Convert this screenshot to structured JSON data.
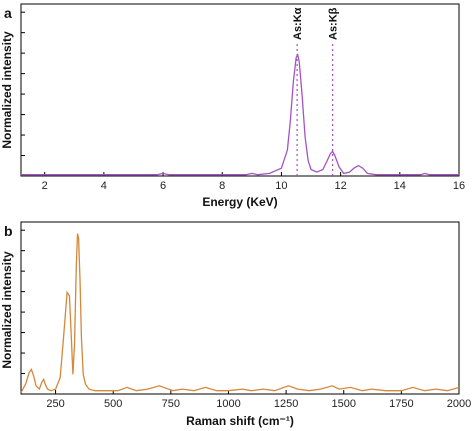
{
  "chart_data": [
    {
      "type": "line",
      "panel": "a",
      "xlabel": "Energy (KeV)",
      "ylabel": "Normalized intensity",
      "xlim": [
        1.2,
        16
      ],
      "ylim": [
        0,
        1.32
      ],
      "xticks": [
        2,
        4,
        6,
        8,
        10,
        12,
        14,
        16
      ],
      "show_y_tick_labels": false,
      "color": "#a452c4",
      "annotations": [
        {
          "text": "As:Kα",
          "x": 10.53
        },
        {
          "text": "As:Kβ",
          "x": 11.73
        }
      ],
      "series": [
        {
          "x": [
            1.2,
            2,
            3,
            4,
            5,
            5.8,
            6.0,
            6.2,
            7,
            8,
            8.8,
            9.0,
            9.2,
            9.6,
            10.0,
            10.2,
            10.3,
            10.4,
            10.5,
            10.55,
            10.6,
            10.7,
            10.8,
            10.9,
            11.0,
            11.2,
            11.4,
            11.55,
            11.65,
            11.73,
            11.8,
            11.95,
            12.1,
            12.3,
            12.45,
            12.6,
            12.75,
            12.9,
            13.2,
            14,
            14.7,
            14.85,
            15.0,
            15.5,
            16
          ],
          "y": [
            0.01,
            0.01,
            0.01,
            0.01,
            0.01,
            0.01,
            0.02,
            0.01,
            0.01,
            0.01,
            0.01,
            0.02,
            0.01,
            0.02,
            0.06,
            0.2,
            0.42,
            0.72,
            0.91,
            0.93,
            0.88,
            0.62,
            0.3,
            0.12,
            0.05,
            0.03,
            0.05,
            0.12,
            0.17,
            0.19,
            0.16,
            0.07,
            0.02,
            0.03,
            0.06,
            0.08,
            0.06,
            0.02,
            0.01,
            0.01,
            0.01,
            0.02,
            0.01,
            0.01,
            0.01
          ]
        }
      ]
    },
    {
      "type": "line",
      "panel": "b",
      "xlabel": "Raman shift (cm⁻¹)",
      "ylabel": "Normalized intensity",
      "xlim": [
        100,
        2000
      ],
      "ylim": [
        0,
        1.05
      ],
      "xticks": [
        250,
        500,
        750,
        1000,
        1250,
        1500,
        1750,
        2000
      ],
      "show_y_tick_labels": false,
      "color": "#d4883a",
      "series": [
        {
          "x": [
            100,
            120,
            135,
            145,
            155,
            165,
            180,
            190,
            198,
            205,
            215,
            230,
            250,
            270,
            285,
            300,
            310,
            318,
            325,
            332,
            340,
            345,
            350,
            356,
            362,
            370,
            380,
            395,
            420,
            470,
            520,
            560,
            600,
            650,
            700,
            760,
            800,
            850,
            900,
            950,
            1000,
            1060,
            1100,
            1150,
            1200,
            1260,
            1300,
            1350,
            1400,
            1450,
            1480,
            1530,
            1580,
            1620,
            1680,
            1750,
            1800,
            1850,
            1900,
            1950,
            2000
          ],
          "y": [
            0.01,
            0.06,
            0.13,
            0.15,
            0.11,
            0.05,
            0.03,
            0.07,
            0.09,
            0.06,
            0.03,
            0.02,
            0.03,
            0.1,
            0.35,
            0.62,
            0.6,
            0.35,
            0.12,
            0.3,
            0.78,
            0.98,
            0.95,
            0.7,
            0.35,
            0.12,
            0.06,
            0.03,
            0.02,
            0.02,
            0.02,
            0.04,
            0.02,
            0.03,
            0.05,
            0.02,
            0.03,
            0.02,
            0.04,
            0.02,
            0.02,
            0.03,
            0.02,
            0.03,
            0.02,
            0.05,
            0.03,
            0.02,
            0.03,
            0.05,
            0.03,
            0.04,
            0.02,
            0.03,
            0.02,
            0.02,
            0.04,
            0.02,
            0.03,
            0.02,
            0.04
          ]
        }
      ]
    }
  ]
}
